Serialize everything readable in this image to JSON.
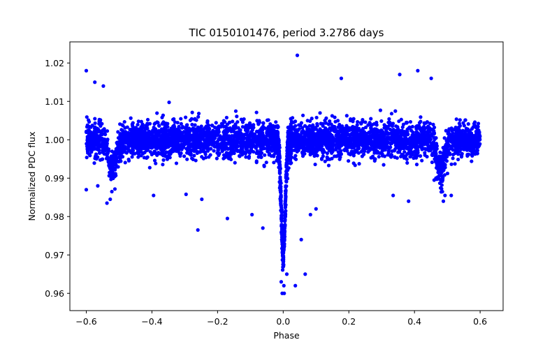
{
  "chart_data": {
    "type": "scatter",
    "title": "TIC 0150101476, period 3.2786 days",
    "xlabel": "Phase",
    "ylabel": "Normalized PDC flux",
    "xlim": [
      -0.65,
      0.67
    ],
    "ylim": [
      0.9555,
      1.0255
    ],
    "xticks": [
      -0.6,
      -0.4,
      -0.2,
      0.0,
      0.2,
      0.4,
      0.6
    ],
    "xtick_labels": [
      "−0.6",
      "−0.4",
      "−0.2",
      "0.0",
      "0.2",
      "0.4",
      "0.6"
    ],
    "yticks": [
      0.96,
      0.97,
      0.98,
      0.99,
      1.0,
      1.01,
      1.02
    ],
    "ytick_labels": [
      "0.96",
      "0.97",
      "0.98",
      "0.99",
      "1.00",
      "1.01",
      "1.02"
    ],
    "grid": false,
    "marker_color": "#0000ff",
    "marker": "filled circle",
    "phase_range": [
      -0.6,
      0.6
    ],
    "baseline_flux": 1.0,
    "primary_eclipse": {
      "phase": 0.0,
      "min_flux": 0.971
    },
    "secondary_eclipses": [
      {
        "phase": -0.52,
        "min_flux": 0.987
      },
      {
        "phase": 0.48,
        "min_flux": 0.987
      }
    ],
    "points": [
      [
        -0.6,
        1.018
      ],
      [
        -0.574,
        1.015
      ],
      [
        -0.548,
        1.014
      ],
      [
        0.043,
        1.022
      ],
      [
        0.177,
        1.016
      ],
      [
        0.355,
        1.017
      ],
      [
        0.41,
        1.018
      ],
      [
        0.451,
        1.016
      ],
      [
        0.055,
        0.974
      ],
      [
        0.067,
        0.965
      ],
      [
        0.011,
        0.965
      ],
      [
        0.037,
        0.962
      ],
      [
        0.003,
        0.96
      ],
      [
        -0.003,
        0.96
      ],
      [
        -0.006,
        0.963
      ],
      [
        0.002,
        0.962
      ],
      [
        -0.26,
        0.9765
      ],
      [
        -0.17,
        0.9795
      ],
      [
        -0.062,
        0.977
      ],
      [
        -0.395,
        0.9855
      ],
      [
        -0.095,
        0.9805
      ],
      [
        0.083,
        0.9805
      ],
      [
        0.1,
        0.982
      ],
      [
        0.335,
        0.9855
      ],
      [
        0.382,
        0.984
      ],
      [
        0.488,
        0.984
      ],
      [
        0.512,
        0.9855
      ],
      [
        -0.537,
        0.9835
      ],
      [
        -0.6,
        0.987
      ],
      [
        -0.565,
        0.988
      ],
      [
        -0.527,
        0.9845
      ],
      [
        0.46,
        0.9895
      ],
      [
        0.472,
        0.9915
      ],
      [
        0.493,
        0.9855
      ],
      [
        -0.248,
        0.9845
      ],
      [
        -0.296,
        0.9858
      ]
    ]
  }
}
